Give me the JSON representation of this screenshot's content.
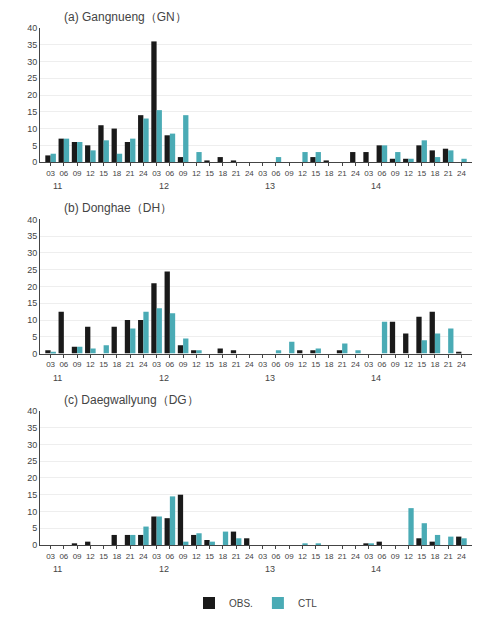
{
  "chart_data": [
    {
      "type": "bar",
      "title": "(a) Gangnueng（GN）",
      "categories": [
        "03",
        "06",
        "09",
        "12",
        "15",
        "18",
        "21",
        "24",
        "03",
        "06",
        "09",
        "12",
        "15",
        "18",
        "21",
        "24",
        "03",
        "06",
        "09",
        "12",
        "15",
        "18",
        "21",
        "24",
        "03",
        "06",
        "09",
        "12",
        "15",
        "18",
        "21",
        "24"
      ],
      "series": [
        {
          "name": "OBS.",
          "color": "#1a1a1a",
          "values": [
            2,
            7,
            6,
            5,
            11,
            10,
            6,
            14,
            36,
            8,
            1.5,
            0,
            0.5,
            1.5,
            0.5,
            0,
            0,
            0,
            0,
            0,
            1.5,
            0.5,
            0,
            3,
            3,
            5,
            1,
            1,
            5,
            3.5,
            4,
            0
          ]
        },
        {
          "name": "CTL",
          "color": "#4aabb5",
          "values": [
            2.5,
            7,
            6,
            3.5,
            6.5,
            2.5,
            7,
            13,
            15.5,
            8.5,
            14,
            3,
            0,
            0,
            0,
            0,
            0,
            1.5,
            0,
            3,
            3,
            0,
            0,
            0,
            0,
            5,
            3,
            1,
            6.5,
            1.5,
            3.5,
            1
          ]
        }
      ],
      "annotations": [
        {
          "text": "11",
          "x": 0
        },
        {
          "text": "12",
          "x": 8
        },
        {
          "text": "13",
          "x": 16
        },
        {
          "text": "14",
          "x": 24
        }
      ],
      "ylim": [
        0,
        40
      ],
      "yticks": [
        0,
        5,
        10,
        15,
        20,
        25,
        30,
        35,
        40
      ],
      "grid": true,
      "legend": "lower center"
    },
    {
      "type": "bar",
      "title": "(b) Donghae（DH）",
      "categories": [
        "03",
        "06",
        "09",
        "12",
        "15",
        "18",
        "21",
        "24",
        "03",
        "06",
        "09",
        "12",
        "15",
        "18",
        "21",
        "24",
        "03",
        "06",
        "09",
        "12",
        "15",
        "18",
        "21",
        "24",
        "03",
        "06",
        "09",
        "12",
        "15",
        "18",
        "21",
        "24"
      ],
      "series": [
        {
          "name": "OBS.",
          "color": "#1a1a1a",
          "values": [
            1,
            12.5,
            2,
            8,
            0,
            8,
            10,
            10,
            21,
            24.5,
            2.5,
            1,
            0,
            1.5,
            1,
            0,
            0,
            0,
            0,
            1,
            1,
            0,
            1,
            0,
            0,
            0,
            9.5,
            6,
            11,
            12.5,
            0,
            0.5
          ]
        },
        {
          "name": "CTL",
          "color": "#4aabb5",
          "values": [
            0.5,
            0,
            2,
            1.5,
            2.5,
            0,
            7.5,
            12.5,
            13.5,
            12,
            4.5,
            1,
            0,
            0,
            0,
            0,
            0,
            1,
            3.5,
            0,
            1.5,
            0,
            3,
            1,
            0,
            9.5,
            0,
            0,
            4,
            6,
            7.5,
            0
          ]
        }
      ],
      "annotations": [
        {
          "text": "11",
          "x": 0
        },
        {
          "text": "12",
          "x": 8
        },
        {
          "text": "13",
          "x": 16
        },
        {
          "text": "14",
          "x": 24
        }
      ],
      "ylim": [
        0,
        40
      ],
      "yticks": [
        0,
        5,
        10,
        15,
        20,
        25,
        30,
        35,
        40
      ],
      "grid": true
    },
    {
      "type": "bar",
      "title": "(c) Daegwallyung（DG）",
      "categories": [
        "03",
        "06",
        "09",
        "12",
        "15",
        "18",
        "21",
        "24",
        "03",
        "06",
        "09",
        "12",
        "15",
        "18",
        "21",
        "24",
        "03",
        "06",
        "09",
        "12",
        "15",
        "18",
        "21",
        "24",
        "03",
        "06",
        "09",
        "12",
        "15",
        "18",
        "21",
        "24"
      ],
      "series": [
        {
          "name": "OBS.",
          "color": "#1a1a1a",
          "values": [
            0,
            0,
            0.5,
            1,
            0,
            3,
            3,
            3,
            8.5,
            8,
            15,
            3,
            1.5,
            0,
            4,
            2,
            0,
            0,
            0,
            0,
            0,
            0,
            0,
            0,
            0.5,
            1,
            0,
            0,
            2,
            1,
            0,
            2.5
          ]
        },
        {
          "name": "CTL",
          "color": "#4aabb5",
          "values": [
            0,
            0,
            0,
            0,
            0,
            0,
            3,
            5.5,
            8.5,
            14.5,
            1,
            3.5,
            1,
            4,
            2,
            0,
            0,
            0,
            0,
            0.5,
            0.5,
            0,
            0,
            0,
            0.5,
            0,
            0,
            11,
            6.5,
            3,
            2.5,
            2
          ]
        }
      ],
      "annotations": [
        {
          "text": "11",
          "x": 0
        },
        {
          "text": "12",
          "x": 8
        },
        {
          "text": "13",
          "x": 16
        },
        {
          "text": "14",
          "x": 24
        }
      ],
      "ylim": [
        0,
        40
      ],
      "yticks": [
        0,
        5,
        10,
        15,
        20,
        25,
        30,
        35,
        40
      ],
      "grid": true
    }
  ]
}
